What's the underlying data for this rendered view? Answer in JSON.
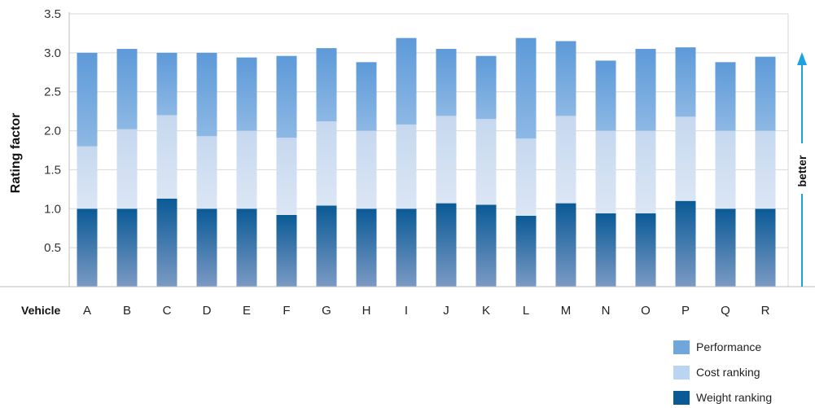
{
  "chart_data": {
    "type": "bar",
    "stacked": true,
    "ylabel": "Rating factor",
    "xlabel": "Vehicle",
    "annotation": "better",
    "ylim": [
      0,
      3.5
    ],
    "yticks": [
      0.5,
      1.0,
      1.5,
      2.0,
      2.5,
      3.0,
      3.5
    ],
    "ytick_labels": [
      "0.5",
      "1.0",
      "1.5",
      "2.0",
      "2.5",
      "3.0",
      "3.5"
    ],
    "grid": true,
    "legend_position": "bottom-right",
    "categories": [
      "A",
      "B",
      "C",
      "D",
      "E",
      "F",
      "G",
      "H",
      "I",
      "J",
      "K",
      "L",
      "M",
      "N",
      "O",
      "P",
      "Q",
      "R"
    ],
    "series": [
      {
        "name": "Weight ranking",
        "color": "#0b5a95",
        "values": [
          1.0,
          1.0,
          1.13,
          1.0,
          1.0,
          0.92,
          1.04,
          1.0,
          1.0,
          1.07,
          1.05,
          0.91,
          1.07,
          0.94,
          0.94,
          1.1,
          1.0,
          1.0
        ]
      },
      {
        "name": "Cost ranking",
        "color": "#c5d7ee",
        "values": [
          0.8,
          1.02,
          1.07,
          0.93,
          1.0,
          0.99,
          1.08,
          1.0,
          1.08,
          1.12,
          1.1,
          0.99,
          1.12,
          1.06,
          1.06,
          1.08,
          1.0,
          1.0
        ]
      },
      {
        "name": "Performance",
        "color": "#6fa7dc",
        "values": [
          1.2,
          1.03,
          0.8,
          1.07,
          0.94,
          1.05,
          0.94,
          0.88,
          1.11,
          0.86,
          0.81,
          1.29,
          0.96,
          0.9,
          1.05,
          0.89,
          0.88,
          0.95
        ]
      }
    ]
  }
}
